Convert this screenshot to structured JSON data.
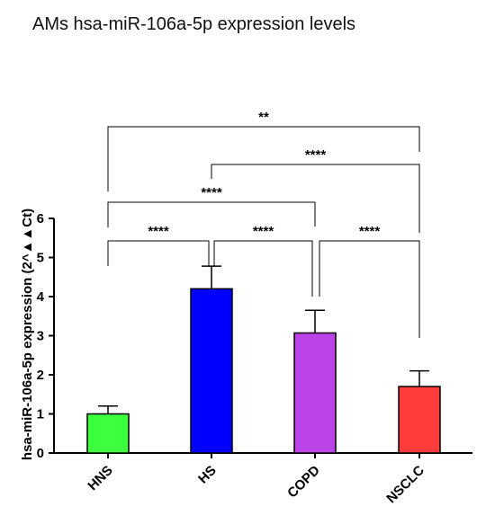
{
  "chart_data": {
    "type": "bar",
    "title": "AMs hsa-miR-106a-5p expression levels",
    "ylabel": "hsa-miR-106a-5p expression (2^▲▲Ct)",
    "xlabel": "",
    "ylim": [
      0,
      6
    ],
    "yticks": [
      0,
      1,
      2,
      3,
      4,
      5,
      6
    ],
    "categories": [
      "HNS",
      "HS",
      "COPD",
      "NSCLC"
    ],
    "values": [
      1.0,
      4.2,
      3.07,
      1.7
    ],
    "errors": [
      0.2,
      0.58,
      0.58,
      0.4
    ],
    "bar_colors": [
      "#3dff3d",
      "#0000ff",
      "#bb44e8",
      "#ff3b3b"
    ],
    "significance": [
      {
        "from": "HNS",
        "to": "HS",
        "label": "****"
      },
      {
        "from": "HS",
        "to": "COPD",
        "label": "****"
      },
      {
        "from": "COPD",
        "to": "NSCLC",
        "label": "****"
      },
      {
        "from": "HNS",
        "to": "COPD",
        "label": "****"
      },
      {
        "from": "HS",
        "to": "NSCLC",
        "label": "****"
      },
      {
        "from": "HNS",
        "to": "NSCLC",
        "label": "**"
      }
    ],
    "grid": false,
    "legend": "none"
  }
}
